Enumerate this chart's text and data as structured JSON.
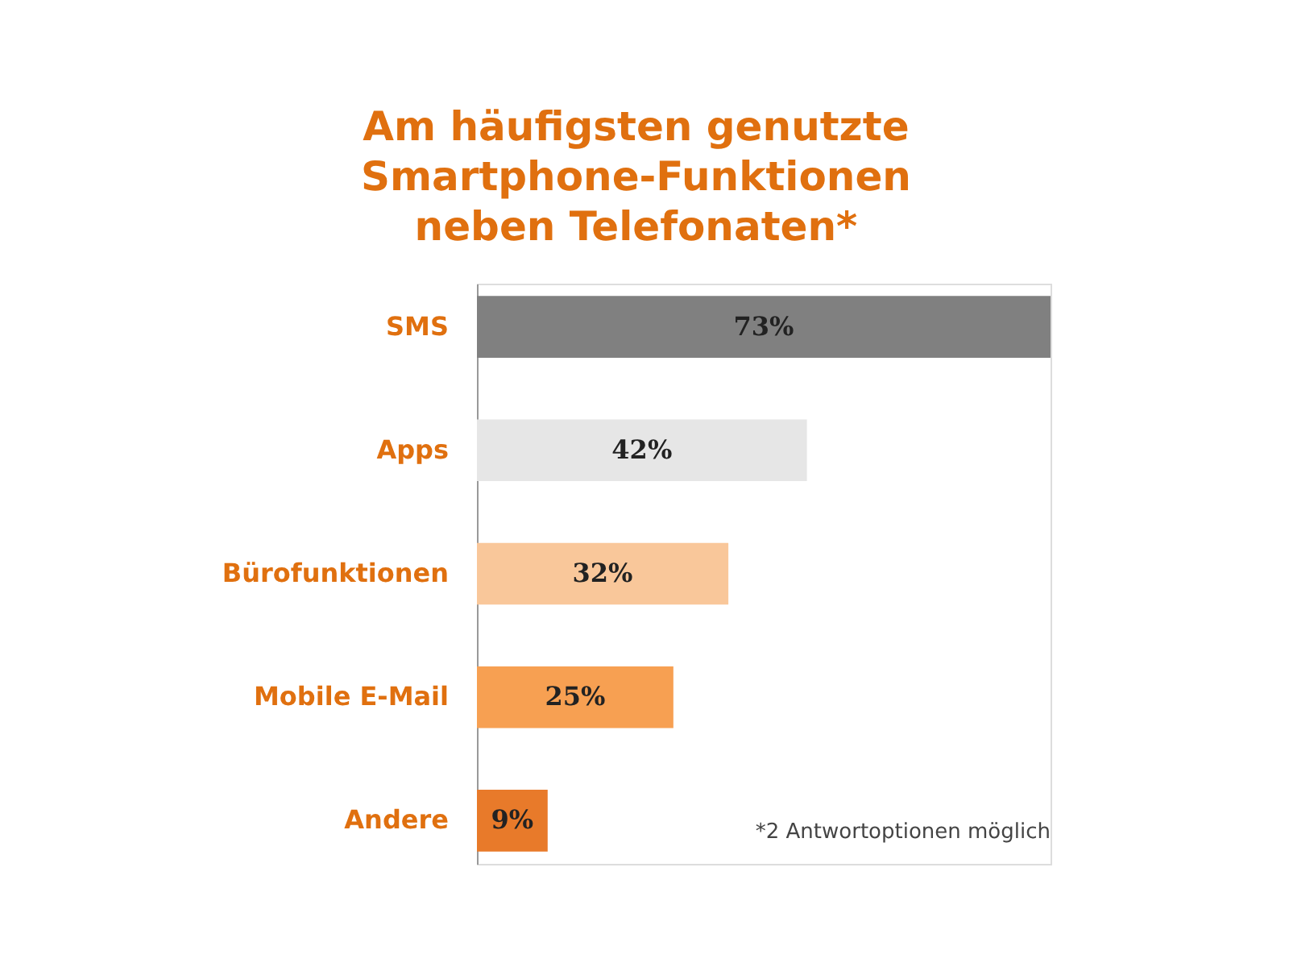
{
  "chart_data": {
    "type": "bar",
    "orientation": "horizontal",
    "title": "Am häufigsten genutzte\nSmartphone-Funktionen\nneben Telefonaten*",
    "categories": [
      "SMS",
      "Apps",
      "Bürofunktionen",
      "Mobile E-Mail",
      "Andere"
    ],
    "values": [
      73,
      42,
      32,
      25,
      9
    ],
    "colors": [
      "#808080",
      "#e6e6e6",
      "#f9c79a",
      "#f7a052",
      "#e87a2a"
    ],
    "value_labels": [
      "73%",
      "42%",
      "32%",
      "25%",
      "9%"
    ],
    "tick_labels": "y",
    "annotations": [
      "*2 Antwortoptionen möglich"
    ]
  }
}
